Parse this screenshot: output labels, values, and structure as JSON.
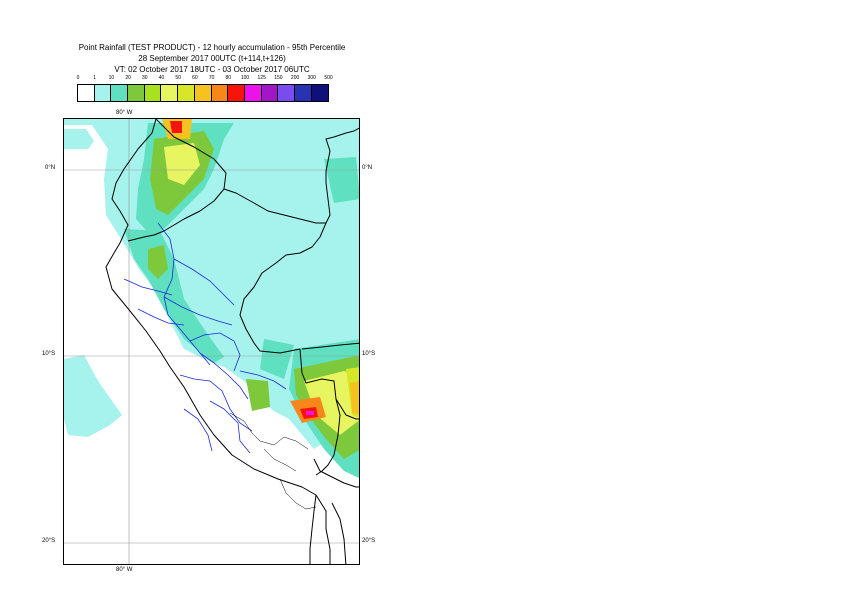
{
  "title": {
    "line1": "Point Rainfall (TEST PRODUCT) - 12 hourly accumulation - 95th Percentile",
    "line2": "28 September 2017 00UTC (t+114,t+126)",
    "line3": "VT: 02 October 2017 18UTC - 03 October 2017 06UTC"
  },
  "legend": {
    "ticks": [
      "0",
      "1",
      "10",
      "20",
      "30",
      "40",
      "50",
      "60",
      "70",
      "80",
      "100",
      "125",
      "150",
      "200",
      "300",
      "500"
    ],
    "colors": [
      "#ffffff",
      "#a6f2ec",
      "#5fe0c0",
      "#7ec83c",
      "#a8e21e",
      "#e6f560",
      "#d8e62a",
      "#f6c21f",
      "#f7861b",
      "#f6140b",
      "#ec12ec",
      "#a216c8",
      "#7a4cf0",
      "#2a32b4",
      "#10107a"
    ]
  },
  "map": {
    "lon_labels": {
      "top": "80° W",
      "bottom": "80° W"
    },
    "lat_labels": {
      "north": {
        "left": "0°N",
        "right": "0°N"
      },
      "s10": {
        "left": "10°S",
        "right": "10°S"
      },
      "s20": {
        "left": "20°S",
        "right": "20°S"
      }
    }
  }
}
